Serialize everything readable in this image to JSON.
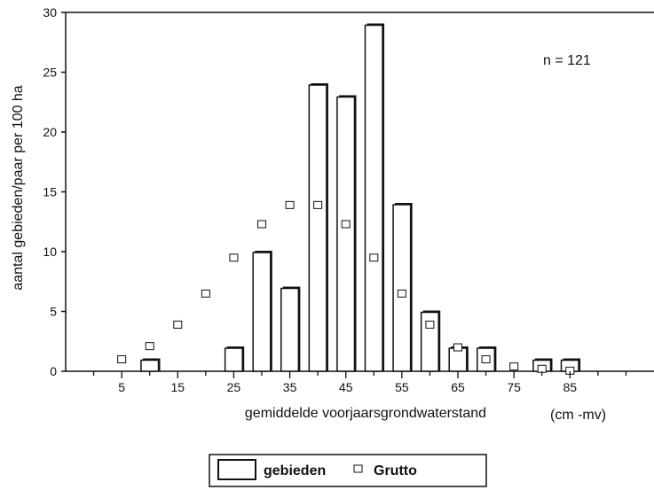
{
  "chart_data": {
    "type": "bar",
    "xlabel": "gemiddelde voorjaarsgrondwaterstand",
    "xlabel_unit": "(cm -mv)",
    "ylabel": "aantal gebieden/paar per 100 ha",
    "annotation": "n = 121",
    "ylim": [
      0,
      30
    ],
    "yticks": [
      0,
      5,
      10,
      15,
      20,
      25,
      30
    ],
    "xlim": [
      -5,
      100
    ],
    "xticks": [
      5,
      15,
      25,
      35,
      45,
      55,
      65,
      75,
      85
    ],
    "grid": false,
    "legend_position": "bottom",
    "series": [
      {
        "name": "gebieden",
        "type": "bar",
        "x": [
          10,
          25,
          30,
          35,
          40,
          45,
          50,
          55,
          60,
          65,
          70,
          80,
          85
        ],
        "values": [
          1,
          2,
          10,
          7,
          24,
          23,
          29,
          14,
          5,
          2,
          2,
          1,
          1
        ]
      },
      {
        "name": "Grutto",
        "type": "scatter",
        "marker": "square-open",
        "x": [
          5,
          10,
          15,
          20,
          25,
          30,
          35,
          40,
          45,
          50,
          55,
          60,
          65,
          70,
          75,
          80,
          85
        ],
        "values": [
          1.0,
          2.1,
          3.9,
          6.5,
          9.5,
          12.3,
          13.9,
          13.9,
          12.3,
          9.5,
          6.5,
          3.9,
          2.0,
          1.0,
          0.4,
          0.2,
          0.05
        ]
      }
    ]
  },
  "colors": {
    "bar_fill": "#ffffff",
    "bar_stroke": "#111111",
    "axis": "#111111"
  }
}
